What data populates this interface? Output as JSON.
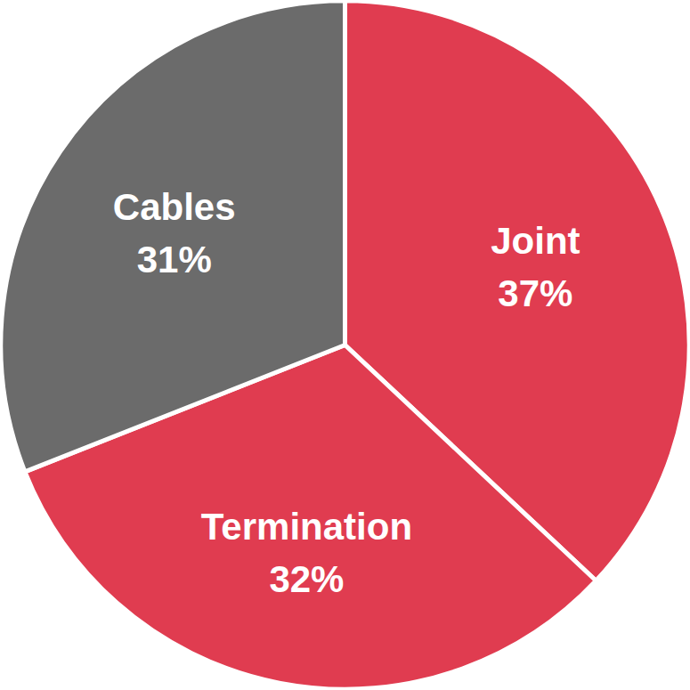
{
  "chart_data": {
    "type": "pie",
    "categories": [
      "Joint",
      "Termination",
      "Cables"
    ],
    "values": [
      37,
      32,
      31
    ],
    "value_labels": [
      "37%",
      "32%",
      "31%"
    ],
    "colors": [
      "#e03c50",
      "#e03c50",
      "#6b6b6b"
    ],
    "data_labels": true
  }
}
